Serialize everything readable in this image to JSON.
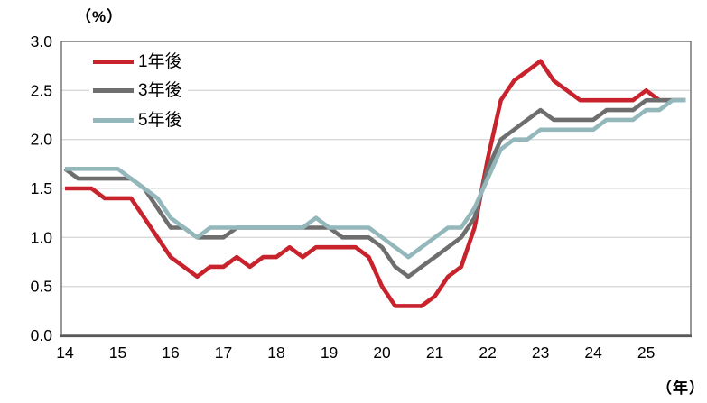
{
  "chart": {
    "y_axis_unit": "（%）",
    "x_axis_unit": "（年）",
    "y_ticks": [
      "0.0",
      "0.5",
      "1.0",
      "1.5",
      "2.0",
      "2.5",
      "3.0"
    ],
    "x_ticks": [
      "14",
      "15",
      "16",
      "17",
      "18",
      "19",
      "20",
      "21",
      "22",
      "23",
      "24",
      "25"
    ],
    "colors": {
      "grid": "#d9d9d9",
      "border": "#7f7f7f",
      "axis": "#595959",
      "text": "#000000",
      "background": "#ffffff"
    }
  },
  "chart_data": {
    "type": "line",
    "title": "",
    "xlabel": "（年）",
    "ylabel": "（%）",
    "ylim": [
      0.0,
      3.0
    ],
    "y_tick_step": 0.5,
    "grid": true,
    "legend_position": "top-left-inside",
    "x_note": "quarterly data, 2014Q1 to 2025Q4; x tick labels mark each year",
    "categories": [
      "2014Q1",
      "2014Q2",
      "2014Q3",
      "2014Q4",
      "2015Q1",
      "2015Q2",
      "2015Q3",
      "2015Q4",
      "2016Q1",
      "2016Q2",
      "2016Q3",
      "2016Q4",
      "2017Q1",
      "2017Q2",
      "2017Q3",
      "2017Q4",
      "2018Q1",
      "2018Q2",
      "2018Q3",
      "2018Q4",
      "2019Q1",
      "2019Q2",
      "2019Q3",
      "2019Q4",
      "2020Q1",
      "2020Q2",
      "2020Q3",
      "2020Q4",
      "2021Q1",
      "2021Q2",
      "2021Q3",
      "2021Q4",
      "2022Q1",
      "2022Q2",
      "2022Q3",
      "2022Q4",
      "2023Q1",
      "2023Q2",
      "2023Q3",
      "2023Q4",
      "2024Q1",
      "2024Q2",
      "2024Q3",
      "2024Q4",
      "2025Q1",
      "2025Q2",
      "2025Q3",
      "2025Q4"
    ],
    "series": [
      {
        "name": "1年後",
        "color": "#c8232c",
        "values": [
          1.5,
          1.5,
          1.5,
          1.4,
          1.4,
          1.4,
          1.2,
          1.0,
          0.8,
          0.7,
          0.6,
          0.7,
          0.7,
          0.8,
          0.7,
          0.8,
          0.8,
          0.9,
          0.8,
          0.9,
          0.9,
          0.9,
          0.9,
          0.8,
          0.5,
          0.3,
          0.3,
          0.3,
          0.4,
          0.6,
          0.7,
          1.1,
          1.8,
          2.4,
          2.6,
          2.7,
          2.8,
          2.6,
          2.5,
          2.4,
          2.4,
          2.4,
          2.4,
          2.4,
          2.5,
          2.4,
          2.4,
          2.4
        ]
      },
      {
        "name": "3年後",
        "color": "#6e6e6e",
        "values": [
          1.7,
          1.6,
          1.6,
          1.6,
          1.6,
          1.6,
          1.5,
          1.3,
          1.1,
          1.1,
          1.0,
          1.0,
          1.0,
          1.1,
          1.1,
          1.1,
          1.1,
          1.1,
          1.1,
          1.1,
          1.1,
          1.0,
          1.0,
          1.0,
          0.9,
          0.7,
          0.6,
          0.7,
          0.8,
          0.9,
          1.0,
          1.2,
          1.7,
          2.0,
          2.1,
          2.2,
          2.3,
          2.2,
          2.2,
          2.2,
          2.2,
          2.3,
          2.3,
          2.3,
          2.4,
          2.4,
          2.4,
          2.4
        ]
      },
      {
        "name": "5年後",
        "color": "#93b7bb",
        "values": [
          1.7,
          1.7,
          1.7,
          1.7,
          1.7,
          1.6,
          1.5,
          1.4,
          1.2,
          1.1,
          1.0,
          1.1,
          1.1,
          1.1,
          1.1,
          1.1,
          1.1,
          1.1,
          1.1,
          1.2,
          1.1,
          1.1,
          1.1,
          1.1,
          1.0,
          0.9,
          0.8,
          0.9,
          1.0,
          1.1,
          1.1,
          1.3,
          1.6,
          1.9,
          2.0,
          2.0,
          2.1,
          2.1,
          2.1,
          2.1,
          2.1,
          2.2,
          2.2,
          2.2,
          2.3,
          2.3,
          2.4,
          2.4
        ]
      }
    ]
  }
}
